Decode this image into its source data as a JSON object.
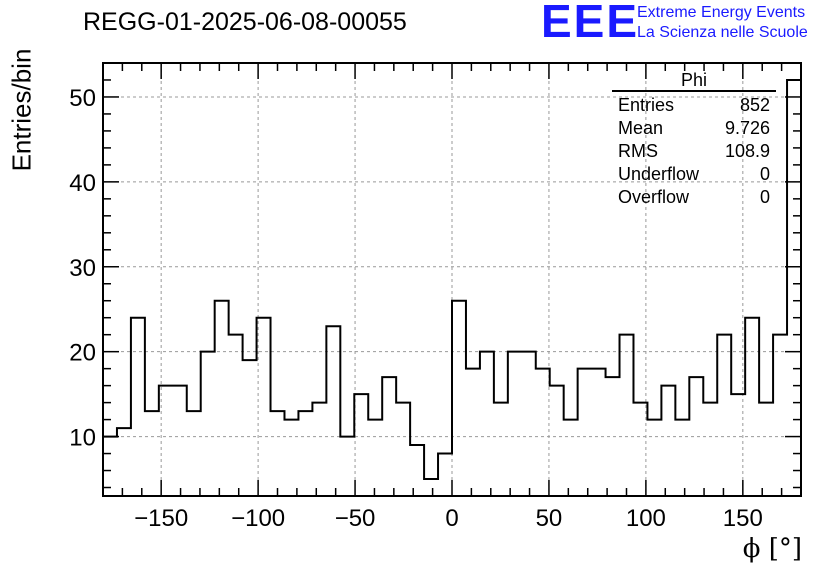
{
  "header": {
    "run_title": "REGG-01-2025-06-08-00055",
    "logo_text": "EEE",
    "logo_line1": "Extreme Energy Events",
    "logo_line2": "La Scienza nelle Scuole",
    "logo_color": "#1a1aff"
  },
  "stats": {
    "title": "Phi",
    "rows": [
      {
        "label": "Entries",
        "value": "852"
      },
      {
        "label": "Mean",
        "value": "9.726"
      },
      {
        "label": "RMS",
        "value": "108.9"
      },
      {
        "label": "Underflow",
        "value": "0"
      },
      {
        "label": "Overflow",
        "value": "0"
      }
    ]
  },
  "chart_data": {
    "type": "histogram",
    "title": "REGG-01-2025-06-08-00055",
    "xlabel": "ϕ [°]",
    "ylabel": "Entries/bin",
    "xlim": [
      -180,
      180
    ],
    "ylim": [
      3,
      54
    ],
    "bin_width": 7.2,
    "grid": true,
    "xticks": [
      -150,
      -100,
      -50,
      0,
      50,
      100,
      150
    ],
    "xtick_labels": [
      "−150",
      "−100",
      "−50",
      "0",
      "50",
      "100",
      "150"
    ],
    "yticks": [
      10,
      20,
      30,
      40,
      50
    ],
    "ytick_labels": [
      "10",
      "20",
      "30",
      "40",
      "50"
    ],
    "values": [
      10,
      11,
      24,
      13,
      16,
      16,
      13,
      20,
      26,
      22,
      19,
      24,
      13,
      12,
      13,
      14,
      23,
      10,
      15,
      12,
      17,
      14,
      9,
      5,
      8,
      26,
      18,
      20,
      14,
      20,
      20,
      18,
      16,
      12,
      18,
      18,
      17,
      22,
      14,
      12,
      16,
      12,
      17,
      14,
      22,
      15,
      24,
      14,
      22,
      52
    ],
    "line_color": "#000000",
    "grid_color": "#999999"
  }
}
